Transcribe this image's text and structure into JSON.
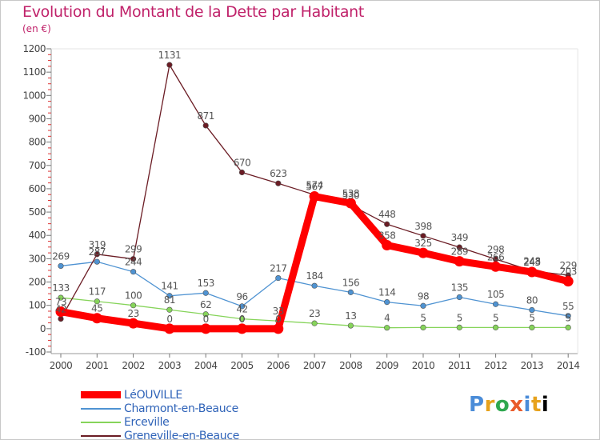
{
  "title": "Evolution du Montant de la Dette par Habitant",
  "unit_label": "(en €)",
  "logo_text": "Proxiti",
  "chart_data": {
    "type": "line",
    "title": "Evolution du Montant de la Dette par Habitant",
    "ylabel": "(en €)",
    "xlabel": "",
    "x": [
      "2000",
      "2001",
      "2002",
      "2003",
      "2004",
      "2005",
      "2006",
      "2007",
      "2008",
      "2009",
      "2010",
      "2011",
      "2012",
      "2013",
      "2014"
    ],
    "ylim": [
      -100,
      1200
    ],
    "yticks": [
      -100,
      0,
      100,
      200,
      300,
      400,
      500,
      600,
      700,
      800,
      900,
      1000,
      1100,
      1200
    ],
    "grid": false,
    "legend_position": "bottom-left",
    "series": [
      {
        "name": "LéOUVILLE",
        "color": "#ff0000",
        "values": [
          73,
          45,
          23,
          0,
          0,
          0,
          0,
          567,
          538,
          358,
          325,
          289,
          266,
          243,
          203
        ]
      },
      {
        "name": "Charmont-en-Beauce",
        "color": "#4f93d2",
        "values": [
          269,
          287,
          244,
          141,
          153,
          96,
          217,
          184,
          156,
          114,
          98,
          135,
          105,
          80,
          55
        ]
      },
      {
        "name": "Erceville",
        "color": "#86d45a",
        "values": [
          133,
          117,
          100,
          81,
          62,
          42,
          33,
          23,
          13,
          4,
          5,
          5,
          5,
          5,
          5
        ]
      },
      {
        "name": "Greneville-en-Beauce",
        "color": "#6b1c24",
        "values": [
          42,
          319,
          299,
          1131,
          871,
          670,
          623,
          574,
          530,
          448,
          398,
          349,
          298,
          248,
          229
        ]
      }
    ]
  }
}
